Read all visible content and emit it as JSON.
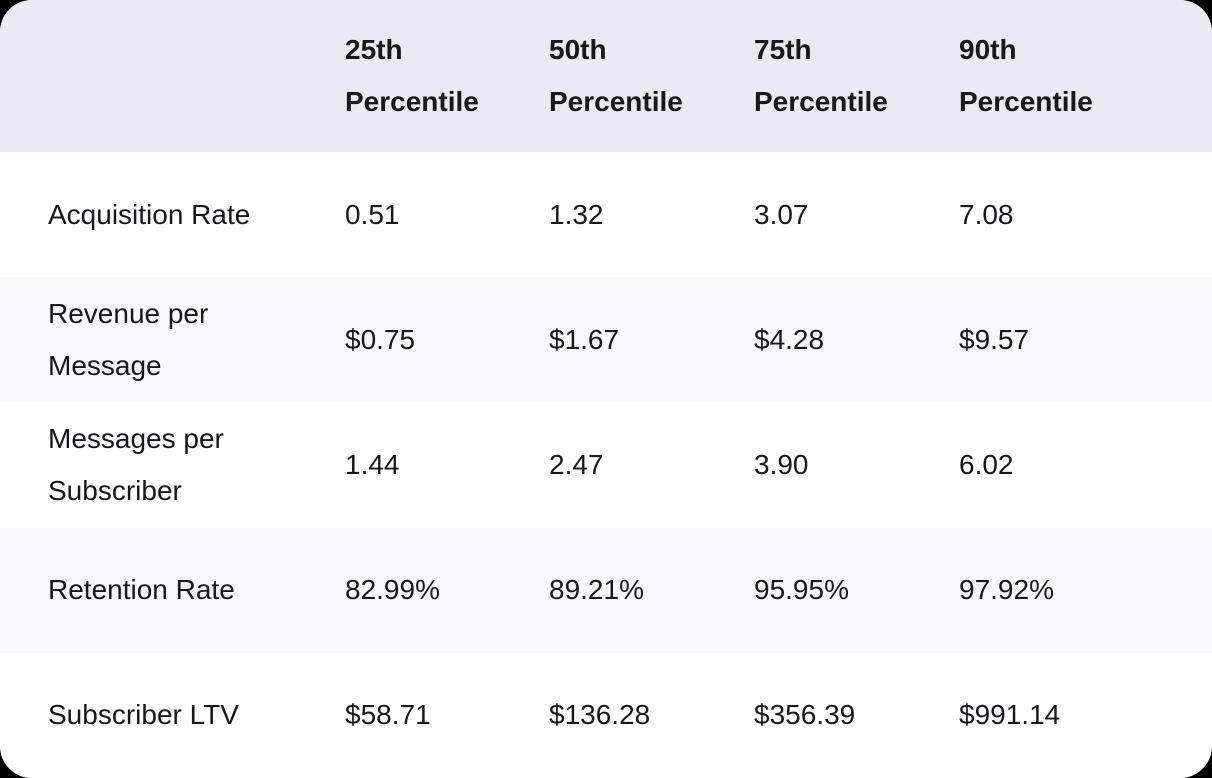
{
  "colors": {
    "page-bg": "#000000",
    "card-bg": "#ffffff",
    "header-bg": "#ebeaf3",
    "row-alt-bg": "#f8f8fa",
    "text": "#17171c"
  },
  "chart_data": {
    "type": "table",
    "columns": [
      "25th Percentile",
      "50th Percentile",
      "75th Percentile",
      "90th Percentile"
    ],
    "rows": [
      {
        "label": "Acquisition Rate",
        "values": [
          "0.51",
          "1.32",
          "3.07",
          "7.08"
        ]
      },
      {
        "label": "Revenue per Message",
        "values": [
          "$0.75",
          "$1.67",
          "$4.28",
          "$9.57"
        ]
      },
      {
        "label": "Messages per Subscriber",
        "values": [
          "1.44",
          "2.47",
          "3.90",
          "6.02"
        ]
      },
      {
        "label": "Retention Rate",
        "values": [
          "82.99%",
          "89.21%",
          "95.95%",
          "97.92%"
        ]
      },
      {
        "label": "Subscriber LTV",
        "values": [
          "$58.71",
          "$136.28",
          "$356.39",
          "$991.14"
        ]
      }
    ]
  }
}
